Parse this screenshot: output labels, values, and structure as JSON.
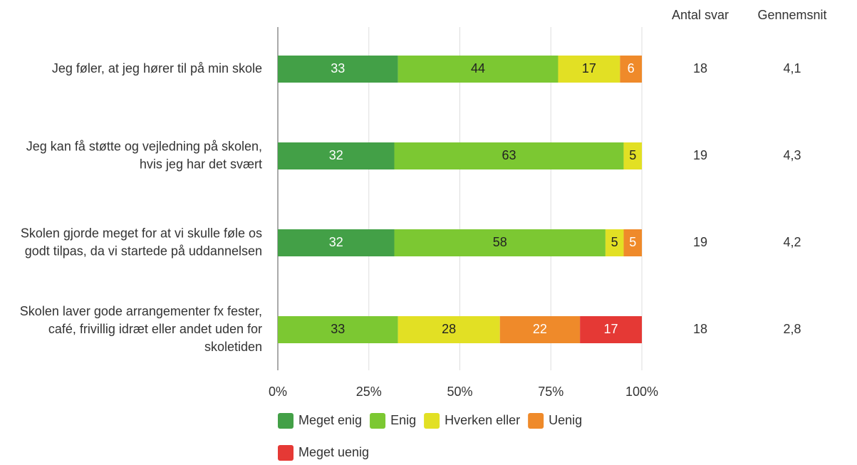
{
  "chart_data": {
    "type": "stacked-bar-horizontal",
    "categories": [
      "Jeg føler, at jeg hører til på min skole",
      "Jeg kan få støtte og vejledning på skolen, hvis jeg har det svært",
      "Skolen gjorde meget for at vi skulle føle os godt tilpas, da vi startede på uddannelsen",
      "Skolen laver gode arrangementer fx fester, café, frivillig idræt eller andet uden for skoletiden"
    ],
    "series": [
      {
        "name": "Meget enig",
        "color": "#43a047",
        "label_color": "#ffffff",
        "values": [
          33,
          32,
          32,
          null
        ]
      },
      {
        "name": "Enig",
        "color": "#7cc832",
        "label_color": "#222222",
        "values": [
          44,
          63,
          58,
          33
        ]
      },
      {
        "name": "Hverken eller",
        "color": "#e2e024",
        "label_color": "#222222",
        "values": [
          17,
          5,
          5,
          28
        ]
      },
      {
        "name": "Uenig",
        "color": "#ef8a2a",
        "label_color": "#ffffff",
        "values": [
          6,
          null,
          5,
          22
        ]
      },
      {
        "name": "Meget uenig",
        "color": "#e53935",
        "label_color": "#ffffff",
        "values": [
          null,
          null,
          null,
          17
        ]
      }
    ],
    "xlim": [
      0,
      100
    ],
    "xticks": [
      {
        "value": 0,
        "label": "0%"
      },
      {
        "value": 25,
        "label": "25%"
      },
      {
        "value": 50,
        "label": "50%"
      },
      {
        "value": 75,
        "label": "75%"
      },
      {
        "value": 100,
        "label": "100%"
      }
    ],
    "grid": true,
    "columns": [
      {
        "name": "Antal svar",
        "values": [
          18,
          19,
          19,
          18
        ]
      },
      {
        "name": "Gennemsnit",
        "values": [
          4.1,
          4.3,
          4.2,
          2.8
        ],
        "value_labels": [
          "4,1",
          "4,3",
          "4,2",
          "2,8"
        ]
      }
    ]
  }
}
